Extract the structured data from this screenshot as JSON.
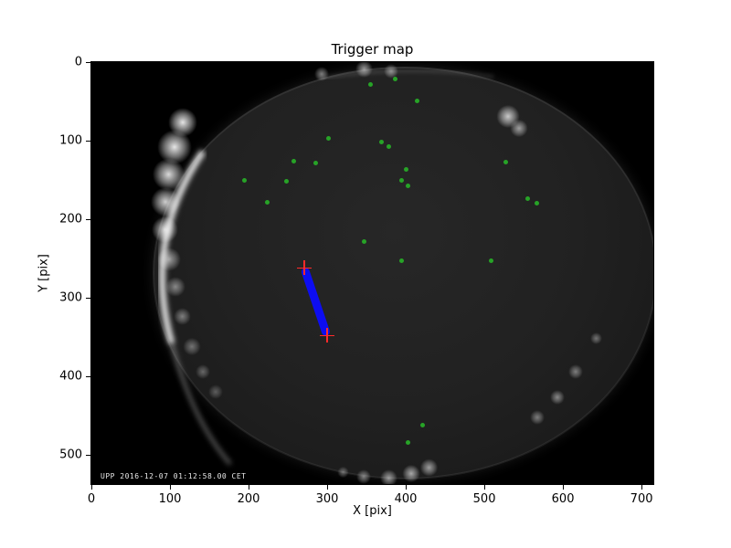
{
  "chart_data": {
    "type": "scatter",
    "title": "Trigger map",
    "xlabel": "X [pix]",
    "ylabel": "Y [pix]",
    "x_ticks": [
      0,
      100,
      200,
      300,
      400,
      500,
      600,
      700
    ],
    "y_ticks": [
      0,
      100,
      200,
      300,
      400,
      500
    ],
    "xlim": [
      0,
      715
    ],
    "ylim": [
      0,
      537
    ],
    "y_axis_inverted": true,
    "grid": false,
    "legend": "none",
    "colors": {
      "trigger_dot": "#27a327",
      "track": "#0d0df0",
      "track_marker": "#ff2a2a",
      "figure_bg": "#ffffff",
      "image_bg": "#000000"
    },
    "triggers": [
      [
        355,
        28
      ],
      [
        386,
        22
      ],
      [
        415,
        49
      ],
      [
        302,
        97
      ],
      [
        369,
        102
      ],
      [
        378,
        107
      ],
      [
        258,
        126
      ],
      [
        285,
        129
      ],
      [
        400,
        136
      ],
      [
        527,
        127
      ],
      [
        195,
        150
      ],
      [
        248,
        152
      ],
      [
        395,
        151
      ],
      [
        403,
        157
      ],
      [
        224,
        178
      ],
      [
        555,
        174
      ],
      [
        567,
        179
      ],
      [
        347,
        228
      ],
      [
        395,
        253
      ],
      [
        509,
        253
      ],
      [
        421,
        462
      ],
      [
        403,
        484
      ]
    ],
    "track": {
      "start": {
        "x": 271,
        "y": 262
      },
      "end": {
        "x": 300,
        "y": 348
      }
    },
    "timestamp_overlay": "UPP 2016-12-07 01:12:58.00 CET",
    "camera_image": {
      "disc_center": {
        "x": 399,
        "y": 268
      },
      "disc_radius_x": 320,
      "disc_radius_y": 262,
      "glow_spots": [
        {
          "x": 116,
          "y": 77,
          "r": 10,
          "o": 0.95
        },
        {
          "x": 106,
          "y": 108,
          "r": 12,
          "o": 0.95
        },
        {
          "x": 98,
          "y": 143,
          "r": 11,
          "o": 0.9
        },
        {
          "x": 94,
          "y": 178,
          "r": 10,
          "o": 0.85
        },
        {
          "x": 94,
          "y": 213,
          "r": 9,
          "o": 0.8
        },
        {
          "x": 99,
          "y": 251,
          "r": 8,
          "o": 0.6
        },
        {
          "x": 107,
          "y": 286,
          "r": 7,
          "o": 0.5
        },
        {
          "x": 116,
          "y": 324,
          "r": 6,
          "o": 0.45
        },
        {
          "x": 128,
          "y": 362,
          "r": 6,
          "o": 0.4
        },
        {
          "x": 142,
          "y": 394,
          "r": 5,
          "o": 0.35
        },
        {
          "x": 158,
          "y": 420,
          "r": 5,
          "o": 0.3
        },
        {
          "x": 293,
          "y": 15,
          "r": 5,
          "o": 0.5
        },
        {
          "x": 347,
          "y": 9,
          "r": 6,
          "o": 0.6
        },
        {
          "x": 381,
          "y": 12,
          "r": 5,
          "o": 0.5
        },
        {
          "x": 530,
          "y": 69,
          "r": 8,
          "o": 0.8
        },
        {
          "x": 544,
          "y": 84,
          "r": 6,
          "o": 0.6
        },
        {
          "x": 642,
          "y": 352,
          "r": 4,
          "o": 0.4
        },
        {
          "x": 616,
          "y": 394,
          "r": 5,
          "o": 0.45
        },
        {
          "x": 593,
          "y": 426,
          "r": 5,
          "o": 0.5
        },
        {
          "x": 567,
          "y": 452,
          "r": 5,
          "o": 0.45
        },
        {
          "x": 430,
          "y": 516,
          "r": 6,
          "o": 0.6
        },
        {
          "x": 407,
          "y": 524,
          "r": 6,
          "o": 0.65
        },
        {
          "x": 378,
          "y": 529,
          "r": 6,
          "o": 0.6
        },
        {
          "x": 347,
          "y": 528,
          "r": 5,
          "o": 0.5
        },
        {
          "x": 320,
          "y": 522,
          "r": 4,
          "o": 0.4
        }
      ]
    }
  }
}
